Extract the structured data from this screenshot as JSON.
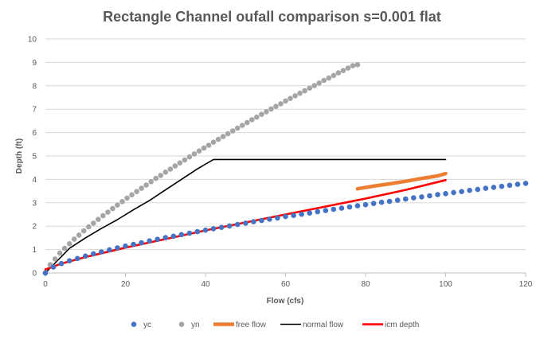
{
  "chart_data": {
    "type": "scatter",
    "title": "Rectangle Channel oufall comparison s=0.001 flat",
    "xlabel": "Flow (cfs)",
    "ylabel": "Depth (ft)",
    "xlim": [
      0,
      120
    ],
    "ylim": [
      0,
      10
    ],
    "x_ticks": [
      "0",
      "20",
      "40",
      "60",
      "80",
      "100",
      "120"
    ],
    "y_ticks": [
      "0",
      "1",
      "2",
      "3",
      "4",
      "5",
      "6",
      "7",
      "8",
      "9",
      "10"
    ],
    "grid": "horizontal",
    "legend_position": "bottom",
    "series": [
      {
        "name": "yc",
        "kind": "markers",
        "color": "#4472c4",
        "points": [
          [
            0,
            0
          ],
          [
            2,
            0.25
          ],
          [
            4,
            0.4
          ],
          [
            6,
            0.52
          ],
          [
            8,
            0.62
          ],
          [
            10,
            0.72
          ],
          [
            12,
            0.82
          ],
          [
            14,
            0.9
          ],
          [
            16,
            0.99
          ],
          [
            18,
            1.07
          ],
          [
            20,
            1.15
          ],
          [
            22,
            1.22
          ],
          [
            24,
            1.29
          ],
          [
            26,
            1.37
          ],
          [
            28,
            1.44
          ],
          [
            30,
            1.51
          ],
          [
            32,
            1.57
          ],
          [
            34,
            1.64
          ],
          [
            36,
            1.7
          ],
          [
            38,
            1.77
          ],
          [
            40,
            1.83
          ],
          [
            42,
            1.89
          ],
          [
            44,
            1.95
          ],
          [
            46,
            2.01
          ],
          [
            48,
            2.07
          ],
          [
            50,
            2.13
          ],
          [
            52,
            2.19
          ],
          [
            54,
            2.24
          ],
          [
            56,
            2.3
          ],
          [
            58,
            2.35
          ],
          [
            60,
            2.41
          ],
          [
            62,
            2.46
          ],
          [
            64,
            2.51
          ],
          [
            66,
            2.56
          ],
          [
            68,
            2.62
          ],
          [
            70,
            2.67
          ],
          [
            72,
            2.72
          ],
          [
            74,
            2.77
          ],
          [
            76,
            2.82
          ],
          [
            78,
            2.87
          ],
          [
            80,
            2.92
          ],
          [
            82,
            2.97
          ],
          [
            84,
            3.02
          ],
          [
            86,
            3.06
          ],
          [
            88,
            3.11
          ],
          [
            90,
            3.16
          ],
          [
            92,
            3.21
          ],
          [
            94,
            3.25
          ],
          [
            96,
            3.3
          ],
          [
            98,
            3.35
          ],
          [
            100,
            3.39
          ],
          [
            102,
            3.44
          ],
          [
            104,
            3.48
          ],
          [
            106,
            3.53
          ],
          [
            108,
            3.57
          ],
          [
            110,
            3.62
          ],
          [
            112,
            3.66
          ],
          [
            114,
            3.7
          ],
          [
            116,
            3.75
          ],
          [
            118,
            3.79
          ],
          [
            120,
            3.83
          ]
        ]
      },
      {
        "name": "yn",
        "kind": "markers",
        "color": "#a5a5a5",
        "points": [
          [
            0,
            0
          ],
          [
            1.2,
            0.35
          ],
          [
            2.4,
            0.6
          ],
          [
            3.6,
            0.85
          ],
          [
            4.8,
            1.05
          ],
          [
            6,
            1.25
          ],
          [
            7.2,
            1.45
          ],
          [
            8.4,
            1.62
          ],
          [
            9.6,
            1.8
          ],
          [
            10.8,
            1.97
          ],
          [
            12,
            2.13
          ],
          [
            13.2,
            2.29
          ],
          [
            14.4,
            2.45
          ],
          [
            15.6,
            2.6
          ],
          [
            16.8,
            2.75
          ],
          [
            18,
            2.9
          ],
          [
            19.2,
            3.05
          ],
          [
            20.4,
            3.2
          ],
          [
            21.6,
            3.34
          ],
          [
            22.8,
            3.48
          ],
          [
            24,
            3.62
          ],
          [
            25.2,
            3.76
          ],
          [
            26.4,
            3.9
          ],
          [
            27.6,
            4.04
          ],
          [
            28.8,
            4.17
          ],
          [
            30,
            4.31
          ],
          [
            31.2,
            4.44
          ],
          [
            32.4,
            4.57
          ],
          [
            33.6,
            4.7
          ],
          [
            34.8,
            4.83
          ],
          [
            36,
            4.96
          ],
          [
            37.2,
            5.09
          ],
          [
            38.4,
            5.21
          ],
          [
            39.6,
            5.34
          ],
          [
            40.8,
            5.46
          ],
          [
            42,
            5.59
          ],
          [
            43.2,
            5.71
          ],
          [
            44.4,
            5.83
          ],
          [
            45.6,
            5.95
          ],
          [
            46.8,
            6.07
          ],
          [
            48,
            6.19
          ],
          [
            49.2,
            6.31
          ],
          [
            50.4,
            6.43
          ],
          [
            51.6,
            6.55
          ],
          [
            52.8,
            6.66
          ],
          [
            54,
            6.78
          ],
          [
            55.2,
            6.89
          ],
          [
            56.4,
            7.01
          ],
          [
            57.6,
            7.12
          ],
          [
            58.8,
            7.23
          ],
          [
            60,
            7.35
          ],
          [
            61.2,
            7.46
          ],
          [
            62.4,
            7.57
          ],
          [
            63.6,
            7.68
          ],
          [
            64.8,
            7.79
          ],
          [
            66,
            7.9
          ],
          [
            67.2,
            8.01
          ],
          [
            68.4,
            8.12
          ],
          [
            69.6,
            8.23
          ],
          [
            70.8,
            8.33
          ],
          [
            72,
            8.44
          ],
          [
            73.2,
            8.55
          ],
          [
            74.4,
            8.65
          ],
          [
            75.6,
            8.76
          ],
          [
            76.8,
            8.86
          ],
          [
            78,
            8.9
          ]
        ]
      },
      {
        "name": "free flow",
        "kind": "line",
        "color": "#ed7d31",
        "points": [
          [
            78,
            3.6
          ],
          [
            82,
            3.71
          ],
          [
            86,
            3.81
          ],
          [
            90,
            3.92
          ],
          [
            94,
            4.04
          ],
          [
            98,
            4.15
          ],
          [
            100,
            4.25
          ]
        ]
      },
      {
        "name": "normal flow",
        "kind": "line",
        "color": "#000000",
        "points": [
          [
            0,
            0
          ],
          [
            6,
            1.05
          ],
          [
            10,
            1.5
          ],
          [
            14,
            1.9
          ],
          [
            18,
            2.28
          ],
          [
            22,
            2.7
          ],
          [
            26,
            3.1
          ],
          [
            30,
            3.55
          ],
          [
            34,
            4.0
          ],
          [
            38,
            4.45
          ],
          [
            42,
            4.85
          ],
          [
            60,
            4.85
          ],
          [
            80,
            4.85
          ],
          [
            100,
            4.85
          ]
        ]
      },
      {
        "name": "icm depth",
        "kind": "line",
        "color": "#ff0000",
        "points": [
          [
            0,
            0.15
          ],
          [
            4,
            0.4
          ],
          [
            10,
            0.68
          ],
          [
            20,
            1.08
          ],
          [
            30,
            1.45
          ],
          [
            40,
            1.82
          ],
          [
            50,
            2.16
          ],
          [
            60,
            2.5
          ],
          [
            70,
            2.84
          ],
          [
            80,
            3.18
          ],
          [
            90,
            3.55
          ],
          [
            100,
            3.97
          ]
        ]
      }
    ]
  }
}
